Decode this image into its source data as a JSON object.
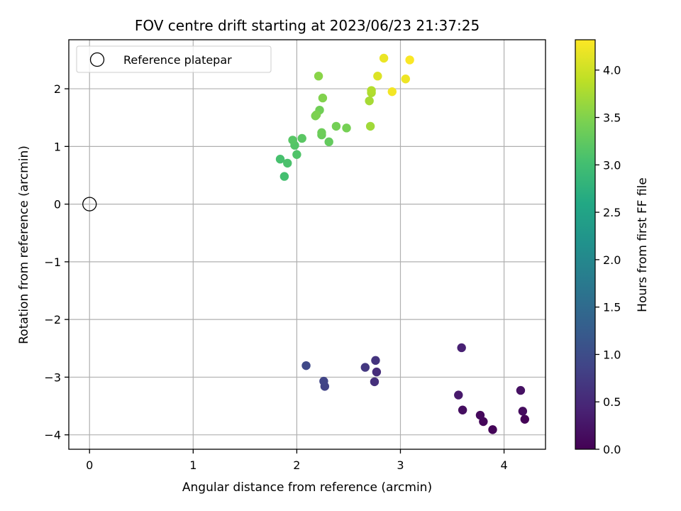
{
  "chart_data": {
    "type": "scatter",
    "title": "FOV centre drift starting at 2023/06/23 21:37:25",
    "xlabel": "Angular distance from reference (arcmin)",
    "ylabel": "Rotation from reference (arcmin)",
    "xlim": [
      -0.2,
      4.4
    ],
    "ylim": [
      -4.25,
      2.85
    ],
    "xticks": [
      0,
      1,
      2,
      3,
      4
    ],
    "xtick_labels": [
      "0",
      "1",
      "2",
      "3",
      "4"
    ],
    "yticks": [
      -4,
      -3,
      -2,
      -1,
      0,
      1,
      2
    ],
    "ytick_labels": [
      "−4",
      "−3",
      "−2",
      "−1",
      "0",
      "1",
      "2"
    ],
    "grid": true,
    "legend": {
      "placement": "top-left",
      "entries": [
        {
          "label": "Reference platepar",
          "marker": "open-circle",
          "x": 0,
          "y": 0
        }
      ]
    },
    "colorbar": {
      "label": "Hours from first FF file",
      "colormap": "viridis",
      "range": [
        0,
        4.32
      ],
      "ticks": [
        0.0,
        0.5,
        1.0,
        1.5,
        2.0,
        2.5,
        3.0,
        3.5,
        4.0
      ],
      "tick_labels": [
        "0.0",
        "0.5",
        "1.0",
        "1.5",
        "2.0",
        "2.5",
        "3.0",
        "3.5",
        "4.0"
      ]
    },
    "points": [
      {
        "x": 4.2,
        "y": -3.73,
        "c": 0.02
      },
      {
        "x": 3.89,
        "y": -3.91,
        "c": 0.05
      },
      {
        "x": 3.8,
        "y": -3.77,
        "c": 0.08
      },
      {
        "x": 3.77,
        "y": -3.66,
        "c": 0.1
      },
      {
        "x": 4.18,
        "y": -3.59,
        "c": 0.13
      },
      {
        "x": 3.6,
        "y": -3.57,
        "c": 0.16
      },
      {
        "x": 4.16,
        "y": -3.23,
        "c": 0.2
      },
      {
        "x": 3.56,
        "y": -3.31,
        "c": 0.3
      },
      {
        "x": 3.59,
        "y": -2.49,
        "c": 0.4
      },
      {
        "x": 2.77,
        "y": -2.91,
        "c": 0.55
      },
      {
        "x": 2.75,
        "y": -3.08,
        "c": 0.6
      },
      {
        "x": 2.76,
        "y": -2.71,
        "c": 0.65
      },
      {
        "x": 2.66,
        "y": -2.83,
        "c": 0.7
      },
      {
        "x": 2.27,
        "y": -3.16,
        "c": 0.85
      },
      {
        "x": 2.26,
        "y": -3.07,
        "c": 0.88
      },
      {
        "x": 2.09,
        "y": -2.8,
        "c": 0.95
      },
      {
        "x": 1.88,
        "y": 0.48,
        "c": 3.02
      },
      {
        "x": 1.84,
        "y": 0.78,
        "c": 3.05
      },
      {
        "x": 1.91,
        "y": 0.71,
        "c": 3.08
      },
      {
        "x": 2.0,
        "y": 0.86,
        "c": 3.12
      },
      {
        "x": 1.98,
        "y": 1.02,
        "c": 3.15
      },
      {
        "x": 1.96,
        "y": 1.11,
        "c": 3.18
      },
      {
        "x": 2.05,
        "y": 1.14,
        "c": 3.2
      },
      {
        "x": 2.31,
        "y": 1.08,
        "c": 3.28
      },
      {
        "x": 2.24,
        "y": 1.2,
        "c": 3.32
      },
      {
        "x": 2.24,
        "y": 1.24,
        "c": 3.35
      },
      {
        "x": 2.38,
        "y": 1.35,
        "c": 3.4
      },
      {
        "x": 2.48,
        "y": 1.32,
        "c": 3.42
      },
      {
        "x": 2.22,
        "y": 1.63,
        "c": 3.38
      },
      {
        "x": 2.18,
        "y": 1.53,
        "c": 3.45
      },
      {
        "x": 2.19,
        "y": 1.55,
        "c": 3.47
      },
      {
        "x": 2.25,
        "y": 1.84,
        "c": 3.5
      },
      {
        "x": 2.21,
        "y": 2.22,
        "c": 3.55
      },
      {
        "x": 2.71,
        "y": 1.35,
        "c": 3.7
      },
      {
        "x": 2.7,
        "y": 1.79,
        "c": 3.74
      },
      {
        "x": 2.72,
        "y": 1.93,
        "c": 3.78
      },
      {
        "x": 2.72,
        "y": 1.97,
        "c": 3.82
      },
      {
        "x": 2.78,
        "y": 2.22,
        "c": 4.1
      },
      {
        "x": 2.84,
        "y": 2.53,
        "c": 4.2
      },
      {
        "x": 2.92,
        "y": 1.95,
        "c": 4.25
      },
      {
        "x": 3.05,
        "y": 2.17,
        "c": 4.22
      },
      {
        "x": 3.09,
        "y": 2.5,
        "c": 4.3
      }
    ]
  }
}
